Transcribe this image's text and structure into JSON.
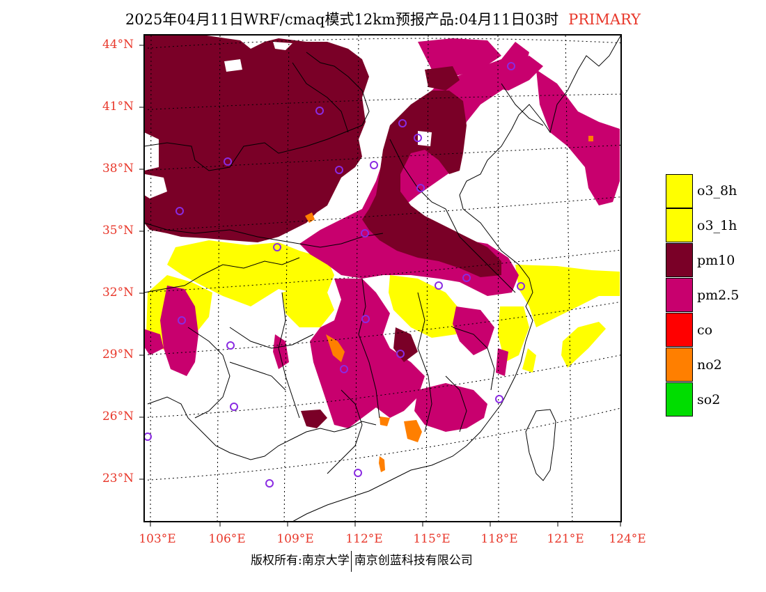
{
  "title": {
    "main": "2025年04月11日WRF/cmaq模式12km预报产品:04月11日03时",
    "tag": "PRIMARY"
  },
  "axes": {
    "lat_labels": [
      "44°N",
      "41°N",
      "38°N",
      "35°N",
      "32°N",
      "29°N",
      "26°N",
      "23°N"
    ],
    "lon_labels": [
      "103°E",
      "106°E",
      "109°E",
      "112°E",
      "115°E",
      "118°E",
      "121°E",
      "124°E"
    ]
  },
  "legend": [
    {
      "label": "o3_8h",
      "color": "#ffff00"
    },
    {
      "label": "o3_1h",
      "color": "#ffff00"
    },
    {
      "label": "pm10",
      "color": "#7a0027"
    },
    {
      "label": "pm2.5",
      "color": "#c8006e"
    },
    {
      "label": "co",
      "color": "#ff0000"
    },
    {
      "label": "no2",
      "color": "#ff7f00"
    },
    {
      "label": "so2",
      "color": "#00dd00"
    }
  ],
  "footer": {
    "copyright": "版权所有:南京大学",
    "company": "南京创蓝科技有限公司"
  }
}
